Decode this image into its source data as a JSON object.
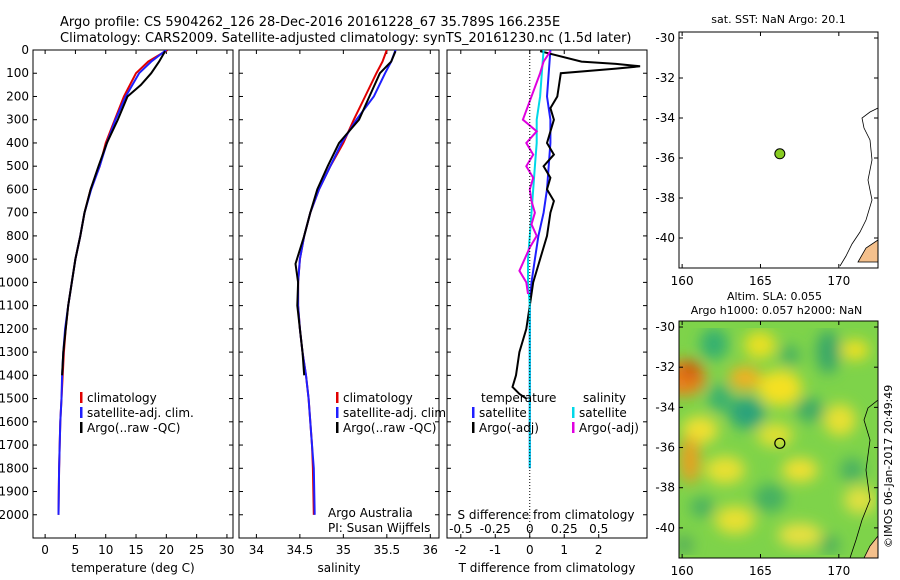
{
  "header": {
    "line1": "Argo profile: CS 5904262_126 28-Dec-2016 20161228_67 35.789S 166.235E",
    "line2": "Climatology: CARS2009. Satellite-adjusted climatology: synTS_20161230.nc (1.5d later)"
  },
  "watermark": "©IMOS 06-Jan-2017 20:49:49",
  "chart_data": [
    {
      "type": "line",
      "id": "temperature",
      "xlabel": "temperature (deg C)",
      "ylabel": "",
      "xlim": [
        -2,
        31
      ],
      "ylim": [
        0,
        2100
      ],
      "y_reversed": true,
      "xticks": [
        "0",
        "5",
        "10",
        "15",
        "20",
        "25",
        "30"
      ],
      "yticks": [
        "0",
        "100",
        "200",
        "300",
        "400",
        "500",
        "600",
        "700",
        "800",
        "900",
        "1000",
        "1100",
        "1200",
        "1300",
        "1400",
        "1500",
        "1600",
        "1700",
        "1800",
        "1900",
        "2000"
      ],
      "legend": [
        "climatology",
        "satellite-adj. clim.",
        "Argo(..raw -QC)"
      ],
      "series": [
        {
          "name": "climatology",
          "color": "#e00000",
          "x": [
            20.2,
            17,
            15,
            13,
            11.5,
            10,
            9,
            7.5,
            6.5,
            5.8,
            5,
            4.4,
            3.8,
            3.4,
            3.1,
            2.9,
            2.7,
            2.5,
            2.4,
            2.3,
            2.2
          ],
          "y": [
            0,
            50,
            100,
            200,
            300,
            400,
            500,
            600,
            700,
            800,
            900,
            1000,
            1100,
            1200,
            1300,
            1400,
            1500,
            1600,
            1700,
            1800,
            2000
          ]
        },
        {
          "name": "satellite-adj. clim.",
          "color": "#1f1fff",
          "x": [
            20,
            17.5,
            15.5,
            13.3,
            11.6,
            10.2,
            9,
            7.6,
            6.5,
            5.8,
            5,
            4.4,
            3.8,
            3.3,
            3.0,
            2.8,
            2.7,
            2.5,
            2.4,
            2.3,
            2.2
          ],
          "y": [
            0,
            50,
            100,
            200,
            300,
            400,
            500,
            600,
            700,
            800,
            900,
            1000,
            1100,
            1200,
            1300,
            1400,
            1500,
            1600,
            1700,
            1800,
            2000
          ]
        },
        {
          "name": "Argo(..raw -QC)",
          "color": "#000000",
          "x": [
            19.8,
            18.8,
            17.5,
            15.8,
            13.6,
            12,
            10.2,
            8.8,
            7.5,
            6.5,
            5.8,
            5,
            4.4,
            3.8,
            3.4,
            3.0,
            2.8
          ],
          "y": [
            5,
            50,
            100,
            150,
            200,
            300,
            400,
            500,
            600,
            700,
            800,
            900,
            1000,
            1100,
            1200,
            1300,
            1400
          ]
        }
      ]
    },
    {
      "type": "line",
      "id": "salinity",
      "xlabel": "salinity",
      "xlim": [
        33.8,
        36.1
      ],
      "ylim": [
        0,
        2100
      ],
      "y_reversed": true,
      "xticks": [
        "34",
        "34.5",
        "35",
        "35.5",
        "36"
      ],
      "legend": [
        "climatology",
        "satellite-adj. clim.",
        "Argo(..raw -QC)"
      ],
      "annotation": [
        "Argo Australia",
        "PI: Susan Wijffels"
      ],
      "series": [
        {
          "name": "climatology",
          "color": "#e00000",
          "x": [
            35.5,
            35.45,
            35.38,
            35.25,
            35.12,
            35.0,
            34.85,
            34.72,
            34.62,
            34.55,
            34.5,
            34.48,
            34.48,
            34.5,
            34.53,
            34.57,
            34.6,
            34.62,
            34.64,
            34.65,
            34.66
          ],
          "y": [
            0,
            50,
            100,
            200,
            300,
            400,
            500,
            600,
            700,
            800,
            900,
            1000,
            1100,
            1200,
            1300,
            1400,
            1500,
            1600,
            1700,
            1800,
            2000
          ]
        },
        {
          "name": "satellite-adj. clim.",
          "color": "#1f1fff",
          "x": [
            35.6,
            35.55,
            35.48,
            35.35,
            35.15,
            34.98,
            34.85,
            34.72,
            34.62,
            34.55,
            34.5,
            34.48,
            34.48,
            34.5,
            34.53,
            34.57,
            34.6,
            34.62,
            34.64,
            34.66,
            34.67
          ],
          "y": [
            0,
            50,
            100,
            200,
            300,
            400,
            500,
            600,
            700,
            800,
            900,
            1000,
            1100,
            1200,
            1300,
            1400,
            1500,
            1600,
            1700,
            1800,
            2000
          ]
        },
        {
          "name": "Argo(..raw -QC)",
          "color": "#000000",
          "x": [
            35.6,
            35.55,
            35.42,
            35.3,
            35.18,
            34.95,
            34.82,
            34.7,
            34.62,
            34.55,
            34.45,
            34.48,
            34.47,
            34.5,
            34.53,
            34.55
          ],
          "y": [
            5,
            50,
            100,
            200,
            300,
            400,
            500,
            600,
            700,
            800,
            920,
            1000,
            1100,
            1200,
            1300,
            1400
          ]
        }
      ]
    },
    {
      "type": "line",
      "id": "difference",
      "xlabel": "T difference from climatology",
      "xlabel2": "S difference from climatology",
      "xlim": [
        -2.4,
        3.4
      ],
      "ylim": [
        0,
        2100
      ],
      "y_reversed": true,
      "xticks": [
        "-2",
        "-1",
        "0",
        "1",
        "2"
      ],
      "xticks_top": [
        "-0.5",
        "-0.25",
        "0",
        "0.25",
        "0.5"
      ],
      "legend_temperature": {
        "title": "temperature",
        "items": [
          "satellite",
          "Argo(-adj)"
        ]
      },
      "legend_salinity": {
        "title": "salinity",
        "items": [
          "satellite",
          "Argo(-adj)"
        ]
      },
      "series": [
        {
          "name": "temperature satellite",
          "color": "#1f1fff",
          "x": [
            0.6,
            0.55,
            0.5,
            0.6,
            0.6,
            0.55,
            0.5,
            0.4,
            0.25,
            0.15,
            0.05,
            0,
            0,
            0,
            0,
            0,
            0,
            0,
            0
          ],
          "y": [
            0,
            100,
            200,
            300,
            400,
            500,
            600,
            700,
            800,
            900,
            1000,
            1100,
            1200,
            1300,
            1400,
            1500,
            1600,
            1700,
            1800
          ]
        },
        {
          "name": "temperature Argo(-adj)",
          "color": "#000000",
          "x": [
            0.3,
            1.5,
            2.5,
            3.2,
            2.5,
            0.9,
            0.8,
            0.6,
            0.7,
            0.5,
            0.7,
            0.4,
            0.6,
            0.5,
            0.7,
            0.6,
            0.5,
            0.3,
            0.1,
            0.0,
            -0.1,
            -0.3,
            -0.4,
            -0.5,
            -0.3,
            -0.1
          ],
          "y": [
            5,
            50,
            60,
            70,
            80,
            100,
            200,
            250,
            300,
            400,
            450,
            500,
            550,
            600,
            650,
            700,
            800,
            900,
            1000,
            1100,
            1200,
            1300,
            1400,
            1450,
            1480,
            1500
          ]
        },
        {
          "name": "salinity satellite",
          "color": "#00d8e8",
          "x": [
            0.4,
            0.35,
            0.3,
            0.2,
            0.2,
            0.15,
            0.1,
            0.05,
            0,
            -0.05,
            -0.05,
            0,
            0,
            0,
            0,
            0,
            0,
            0,
            0
          ],
          "y": [
            0,
            100,
            200,
            300,
            400,
            500,
            600,
            700,
            800,
            900,
            1000,
            1100,
            1200,
            1300,
            1400,
            1500,
            1600,
            1700,
            1800
          ]
        },
        {
          "name": "salinity Argo(-adj)",
          "color": "#e000e0",
          "x": [
            0.6,
            0.4,
            0.3,
            -0.2,
            0.2,
            -0.1,
            0.1,
            -0.1,
            0.1,
            0.0,
            0.05,
            0.15,
            0.05,
            0.2,
            0.0,
            -0.3,
            -0.1,
            -0.05
          ],
          "y": [
            5,
            50,
            100,
            300,
            350,
            400,
            450,
            500,
            550,
            600,
            650,
            700,
            750,
            800,
            850,
            950,
            1000,
            1050
          ]
        }
      ]
    },
    {
      "type": "scatter",
      "id": "sst_map",
      "title": "sat. SST: NaN Argo: 20.1",
      "xlim": [
        159.8,
        172.5
      ],
      "ylim": [
        -41.5,
        -29.7
      ],
      "xticks": [
        "160",
        "165",
        "170"
      ],
      "yticks": [
        "-30",
        "-32",
        "-34",
        "-36",
        "-38",
        "-40"
      ],
      "points": [
        {
          "x": 166.235,
          "y": -35.789,
          "color": "#88cc22"
        }
      ]
    },
    {
      "type": "heatmap",
      "id": "sla_map",
      "title": "Altim. SLA: 0.055",
      "subtitle": "Argo h1000: 0.057 h2000: NaN",
      "xlim": [
        159.8,
        172.5
      ],
      "ylim": [
        -41.5,
        -29.7
      ],
      "xticks": [
        "160",
        "165",
        "170"
      ],
      "yticks": [
        "-30",
        "-32",
        "-34",
        "-36",
        "-38",
        "-40"
      ],
      "points": [
        {
          "x": 166.235,
          "y": -35.789
        }
      ]
    }
  ]
}
